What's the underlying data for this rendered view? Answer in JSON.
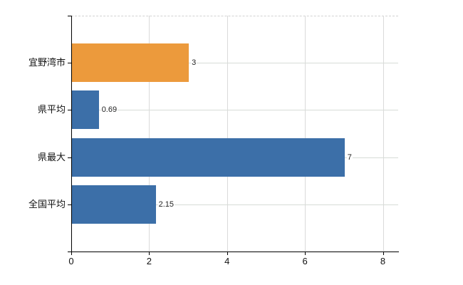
{
  "chart_data": {
    "type": "bar",
    "orientation": "horizontal",
    "title": "",
    "xlabel": "",
    "ylabel": "",
    "categories": [
      "宜野湾市",
      "県平均",
      "県最大",
      "全国平均"
    ],
    "values": [
      3,
      0.69,
      7,
      2.15
    ],
    "value_labels": [
      "3",
      "0.69",
      "7",
      "2.15"
    ],
    "series": [
      {
        "name": "",
        "values": [
          3,
          0.69,
          7,
          2.15
        ]
      }
    ],
    "bar_colors": [
      "#EC9A3C",
      "#3C6FA8",
      "#3C6FA8",
      "#3C6FA8"
    ],
    "xlim": [
      0,
      8
    ],
    "x_ticks": [
      0,
      2,
      4,
      6,
      8
    ],
    "x_tick_labels": [
      "0",
      "2",
      "4",
      "6",
      "8"
    ],
    "grid": true,
    "legend": "none",
    "background_color": "#FFFFFF",
    "axis_color": "#000000",
    "gridline_color": "#DADADA",
    "top_border_style": "dashed",
    "label_color": "#111111"
  }
}
